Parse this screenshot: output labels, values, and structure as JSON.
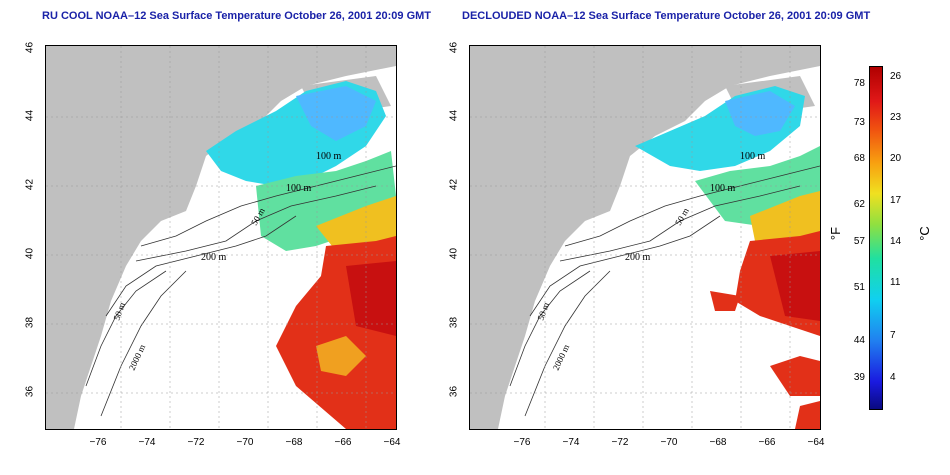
{
  "titles": {
    "left": "RU COOL NOAA–12 Sea Surface Temperature October 26, 2001 20:09 GMT",
    "right": "DECLOUDED NOAA–12 Sea Surface Temperature October 26, 2001 20:09 GMT"
  },
  "axes": {
    "y_ticks": [
      "46",
      "44",
      "42",
      "40",
      "38",
      "36"
    ],
    "x_ticks": [
      "−76",
      "−74",
      "−72",
      "−70",
      "−68",
      "−66",
      "−64"
    ]
  },
  "contour_labels": {
    "m100a": "100 m",
    "m100b": "100 m",
    "m50a": "50 m",
    "m200": "200 m",
    "m50b": "50 m",
    "m2000": "2000 m"
  },
  "colorbar": {
    "fahrenheit_ticks": [
      "78",
      "73",
      "68",
      "62",
      "57",
      "51",
      "44",
      "39"
    ],
    "celsius_ticks": [
      "26",
      "23",
      "20",
      "17",
      "14",
      "11",
      "7",
      "4"
    ],
    "f_unit": "°F",
    "c_unit": "°C"
  },
  "colors": {
    "land": "#c0c0c0",
    "title": "#1a22a8",
    "warm": "#e02010",
    "cool": "#20c0f0"
  }
}
